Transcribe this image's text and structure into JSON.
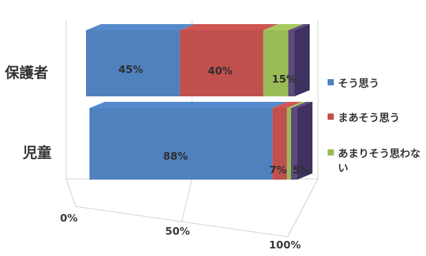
{
  "chart_data": {
    "type": "bar",
    "orientation": "horizontal",
    "stacked": "percent",
    "three_d": true,
    "categories": [
      "保護者",
      "児童"
    ],
    "series": [
      {
        "name": "そう思う",
        "values": [
          45,
          88
        ],
        "labels": [
          "45%",
          "88%"
        ],
        "color": "#4f81bd"
      },
      {
        "name": "まあそう思う",
        "values": [
          40,
          7
        ],
        "labels": [
          "40%",
          "7%"
        ],
        "color": "#c0504d"
      },
      {
        "name": "あまりそう思わない",
        "values": [
          15,
          5
        ],
        "labels": [
          "15%",
          "5%"
        ],
        "color": "#9bbb59"
      },
      {
        "name": "",
        "values": [
          0,
          0
        ],
        "labels": [
          "",
          ""
        ],
        "color": "#5b4a7a"
      }
    ],
    "x_ticks": [
      "0%",
      "50%",
      "100%"
    ],
    "xlim": [
      0,
      100
    ],
    "grid": true,
    "legend_position": "right"
  }
}
